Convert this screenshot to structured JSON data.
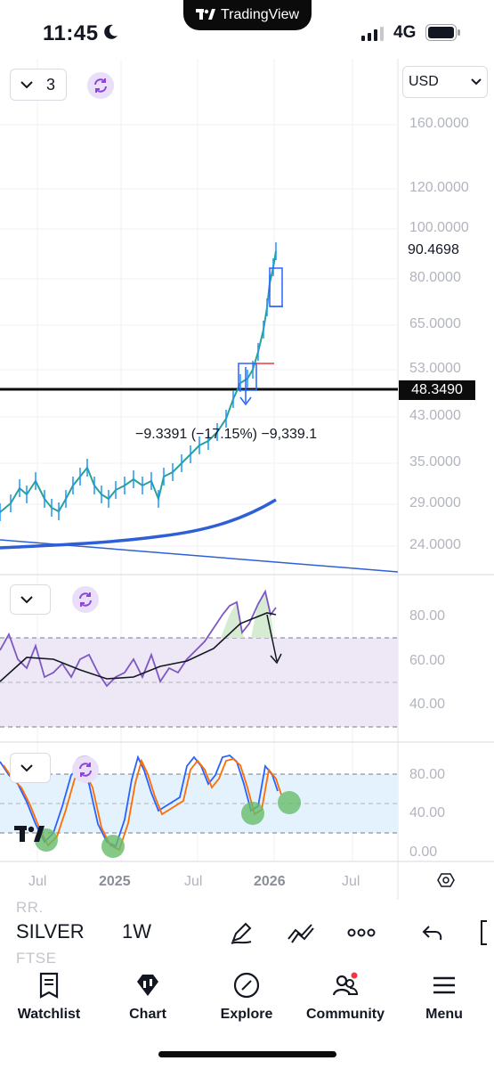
{
  "status": {
    "time": "11:45",
    "network": "4G",
    "app_pill": "TradingView"
  },
  "chart": {
    "interval_count": "3",
    "currency": "USD",
    "price_axis": [
      "160.0000",
      "120.0000",
      "100.0000",
      "80.0000",
      "65.0000",
      "53.0000",
      "43.0000",
      "35.0000",
      "29.0000",
      "24.0000"
    ],
    "last_price": "90.4698",
    "horizontal_line_price": "48.3490",
    "measure_annotation": "−9.3391 (−17.15%) −9,339.1",
    "rsi_axis": [
      "80.00",
      "60.00",
      "40.00"
    ],
    "stoch_axis": [
      "80.00",
      "40.00",
      "0.00"
    ],
    "time_axis": [
      {
        "label": "Jul",
        "bold": false
      },
      {
        "label": "2025",
        "bold": true
      },
      {
        "label": "Jul",
        "bold": false
      },
      {
        "label": "2026",
        "bold": true
      },
      {
        "label": "Jul",
        "bold": false
      }
    ],
    "colors": {
      "price_line": "#2aa198",
      "ma_line": "#2f5fd7",
      "rsi_line": "#7e57c2",
      "rsi_band": "#ede7f6",
      "stoch_k": "#2962ff",
      "stoch_d": "#ff6d00",
      "stoch_band": "#e3f2fd",
      "marker": "#66bb6a"
    }
  },
  "toolbar": {
    "symbol": "SILVER",
    "timeframe": "1W",
    "ghost_rows": [
      "RR.",
      "FTSE"
    ],
    "icons": [
      "pen-icon",
      "multi-line-icon",
      "more-icon",
      "undo-icon"
    ]
  },
  "tabs": [
    {
      "label": "Watchlist",
      "icon": "watchlist-icon"
    },
    {
      "label": "Chart",
      "icon": "chart-icon"
    },
    {
      "label": "Explore",
      "icon": "compass-icon"
    },
    {
      "label": "Community",
      "icon": "community-icon"
    },
    {
      "label": "Menu",
      "icon": "menu-icon"
    }
  ]
}
